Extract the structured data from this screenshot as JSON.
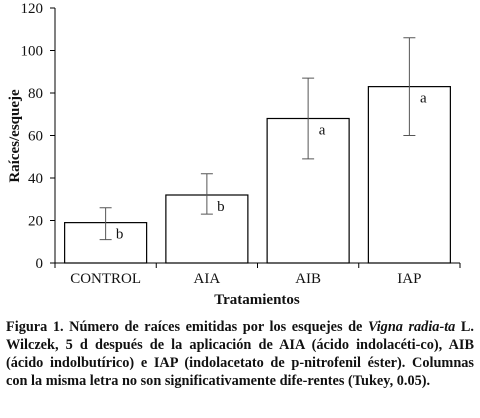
{
  "chart_data": {
    "type": "bar",
    "categories": [
      "CONTROL",
      "AIA",
      "AIB",
      "IAP"
    ],
    "values": [
      19,
      32,
      68,
      83
    ],
    "error_low": [
      11,
      23,
      49,
      60
    ],
    "error_high": [
      26,
      42,
      87,
      106
    ],
    "significance_letters": [
      "b",
      "b",
      "a",
      "a"
    ],
    "xlabel": "Tratamientos",
    "ylabel": "Raíces/esqueje",
    "ylim": [
      0,
      120
    ],
    "yticks": [
      "0",
      "20",
      "40",
      "60",
      "80",
      "100",
      "120"
    ],
    "grid": false,
    "legend": "none"
  },
  "caption": {
    "lead": "Figura 1. Número de raíces emitidas por los esquejes de ",
    "species": "Vigna radia-ta",
    "rest": " L. Wilczek, 5 d después de la aplicación de AIA (ácido indolacéti-co), AIB (ácido indolbutírico) e IAP (indolacetato de p-nitrofenil éster). Columnas con la misma letra no son significativamente dife-rentes (Tukey, 0.05)."
  },
  "colors": {
    "bar_fill": "#ffffff",
    "stroke": "#000000",
    "error_bar": "#555555"
  }
}
